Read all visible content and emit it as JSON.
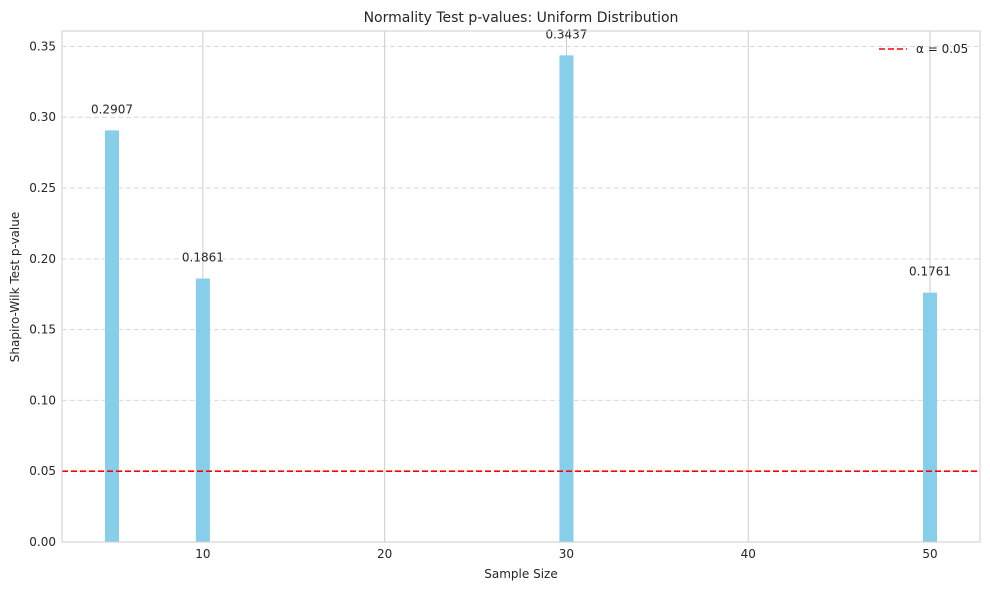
{
  "chart_data": {
    "type": "bar",
    "title": "Normality Test p-values: Uniform Distribution",
    "xlabel": "Sample Size",
    "ylabel": "Shapiro-Wilk Test p-value",
    "x": [
      5,
      10,
      30,
      50
    ],
    "values": [
      0.2907,
      0.1861,
      0.3437,
      0.1761
    ],
    "data_labels": [
      "0.2907",
      "0.1861",
      "0.3437",
      "0.1761"
    ],
    "bar_color": "#87CEEB",
    "xlim": [
      2.25,
      52.75
    ],
    "ylim": [
      0,
      0.3609
    ],
    "xticks": [
      10,
      20,
      30,
      40,
      50
    ],
    "xtick_labels": [
      "10",
      "20",
      "30",
      "40",
      "50"
    ],
    "yticks": [
      0,
      0.05,
      0.1,
      0.15,
      0.2,
      0.25,
      0.3,
      0.35
    ],
    "ytick_labels": [
      "0.00",
      "0.05",
      "0.10",
      "0.15",
      "0.20",
      "0.25",
      "0.30",
      "0.35"
    ],
    "grid": true,
    "reference_line": {
      "y": 0.05,
      "label": "α = 0.05",
      "color": "#ff0000",
      "style": "dashed"
    },
    "legend": {
      "position": "top-right",
      "entries": [
        "α = 0.05"
      ]
    }
  }
}
